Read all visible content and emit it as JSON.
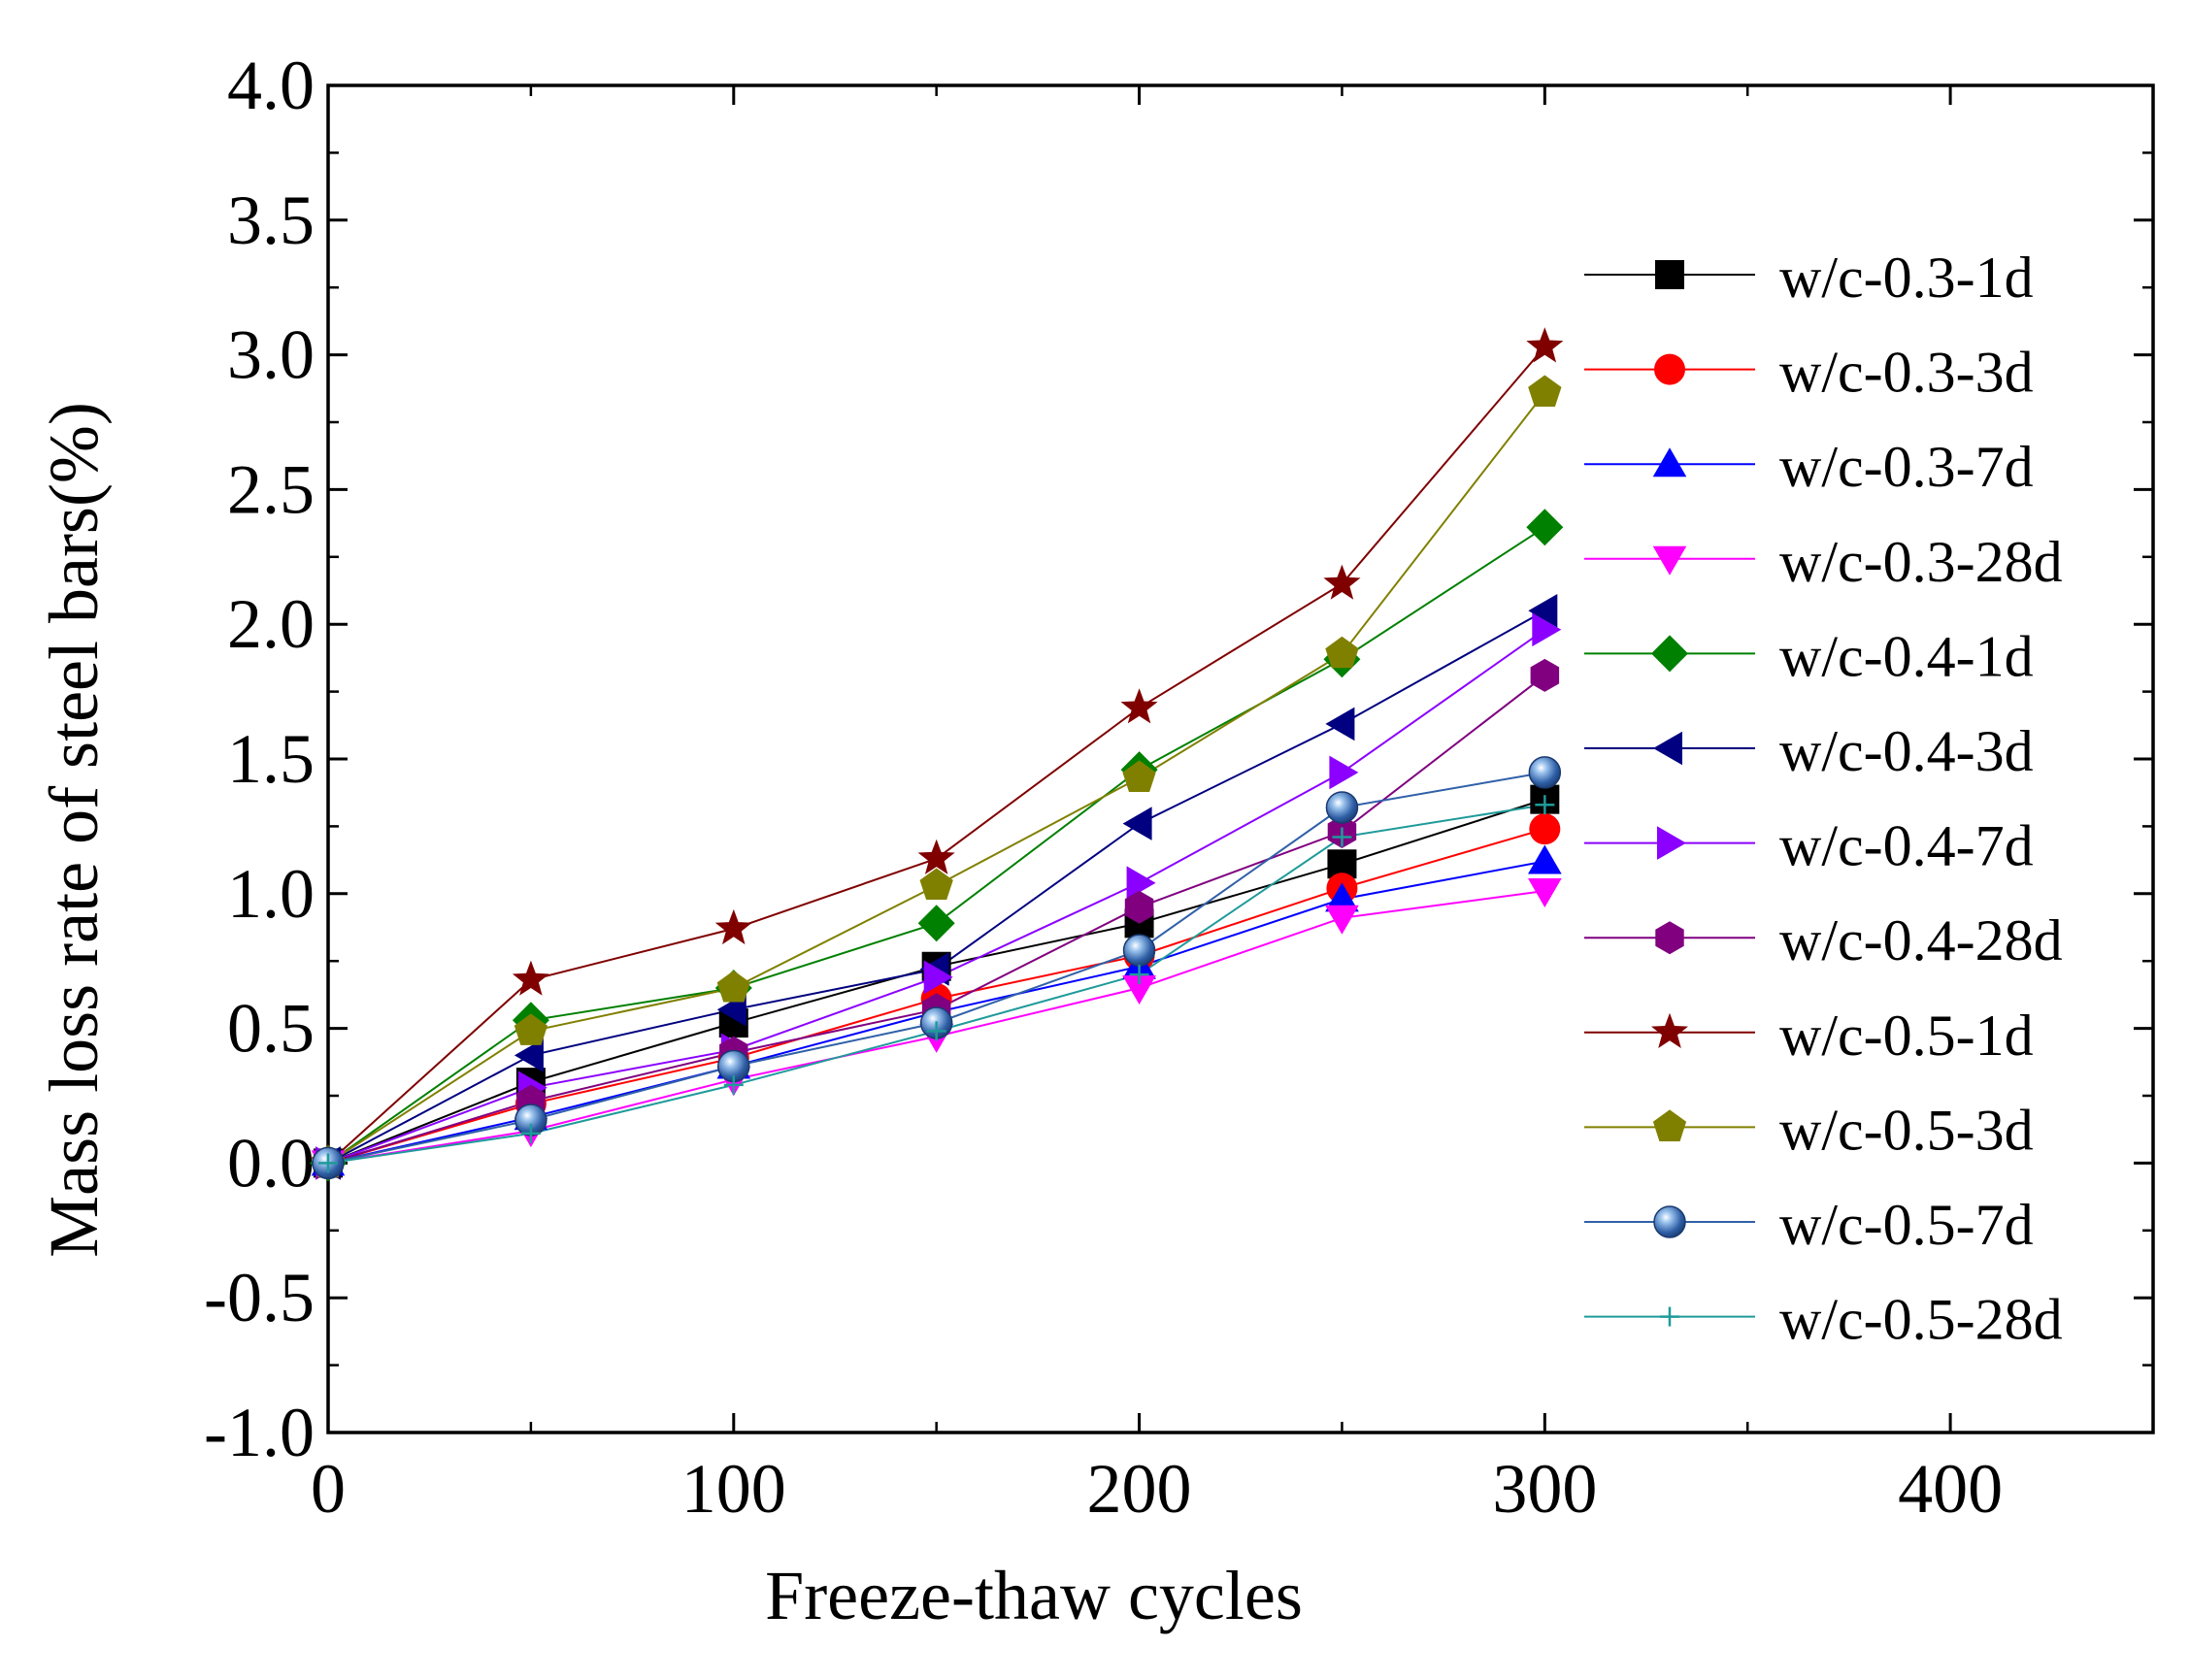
{
  "chart_data": {
    "type": "line",
    "title": "",
    "xlabel": "Freeze-thaw cycles",
    "ylabel": "Mass loss rate of steel bars(%)",
    "xlim": [
      0,
      450
    ],
    "ylim": [
      -1.0,
      4.0
    ],
    "xticks": [
      0,
      100,
      200,
      300,
      400
    ],
    "xtick_labels": [
      "0",
      "100",
      "200",
      "300",
      "400"
    ],
    "yticks": [
      -1.0,
      -0.5,
      0.0,
      0.5,
      1.0,
      1.5,
      2.0,
      2.5,
      3.0,
      3.5,
      4.0
    ],
    "ytick_labels": [
      "-1.0",
      "-0.5",
      "0.0",
      "0.5",
      "1.0",
      "1.5",
      "2.0",
      "2.5",
      "3.0",
      "3.5",
      "4.0"
    ],
    "grid": false,
    "legend_position": "right",
    "x": [
      0,
      50,
      100,
      150,
      200,
      250,
      300
    ],
    "series": [
      {
        "name": "w/c-0.3-1d",
        "color": "#000000",
        "marker": "square",
        "values": [
          0,
          0.3,
          0.52,
          0.73,
          0.89,
          1.11,
          1.35
        ]
      },
      {
        "name": "w/c-0.3-3d",
        "color": "#ff0000",
        "marker": "circle",
        "values": [
          0,
          0.22,
          0.39,
          0.61,
          0.77,
          1.02,
          1.24
        ]
      },
      {
        "name": "w/c-0.3-7d",
        "color": "#0000ff",
        "marker": "triangle-up",
        "values": [
          0,
          0.17,
          0.36,
          0.56,
          0.73,
          0.98,
          1.12
        ]
      },
      {
        "name": "w/c-0.3-28d",
        "color": "#ff00ff",
        "marker": "triangle-down",
        "values": [
          0,
          0.12,
          0.31,
          0.47,
          0.65,
          0.91,
          1.01
        ]
      },
      {
        "name": "w/c-0.4-1d",
        "color": "#008000",
        "marker": "diamond",
        "values": [
          0,
          0.53,
          0.65,
          0.89,
          1.46,
          1.87,
          2.36
        ]
      },
      {
        "name": "w/c-0.4-3d",
        "color": "#000080",
        "marker": "triangle-left",
        "values": [
          0,
          0.4,
          0.57,
          0.72,
          1.26,
          1.63,
          2.05
        ]
      },
      {
        "name": "w/c-0.4-7d",
        "color": "#8b00ff",
        "marker": "triangle-right",
        "values": [
          0,
          0.28,
          0.42,
          0.69,
          1.04,
          1.45,
          1.98
        ]
      },
      {
        "name": "w/c-0.4-28d",
        "color": "#800080",
        "marker": "hexagon",
        "values": [
          0,
          0.23,
          0.41,
          0.57,
          0.95,
          1.23,
          1.81
        ]
      },
      {
        "name": "w/c-0.5-1d",
        "color": "#800000",
        "marker": "star",
        "values": [
          0,
          0.68,
          0.87,
          1.13,
          1.69,
          2.15,
          3.03
        ]
      },
      {
        "name": "w/c-0.5-3d",
        "color": "#808000",
        "marker": "pentagon",
        "values": [
          0,
          0.49,
          0.65,
          1.03,
          1.43,
          1.89,
          2.86
        ]
      },
      {
        "name": "w/c-0.5-7d",
        "color": "#3060a8",
        "marker": "sphere",
        "values": [
          0,
          0.16,
          0.36,
          0.52,
          0.79,
          1.32,
          1.45
        ]
      },
      {
        "name": "w/c-0.5-28d",
        "color": "#1f9a9a",
        "marker": "plus",
        "values": [
          0,
          0.11,
          0.29,
          0.49,
          0.7,
          1.21,
          1.33
        ]
      }
    ]
  }
}
